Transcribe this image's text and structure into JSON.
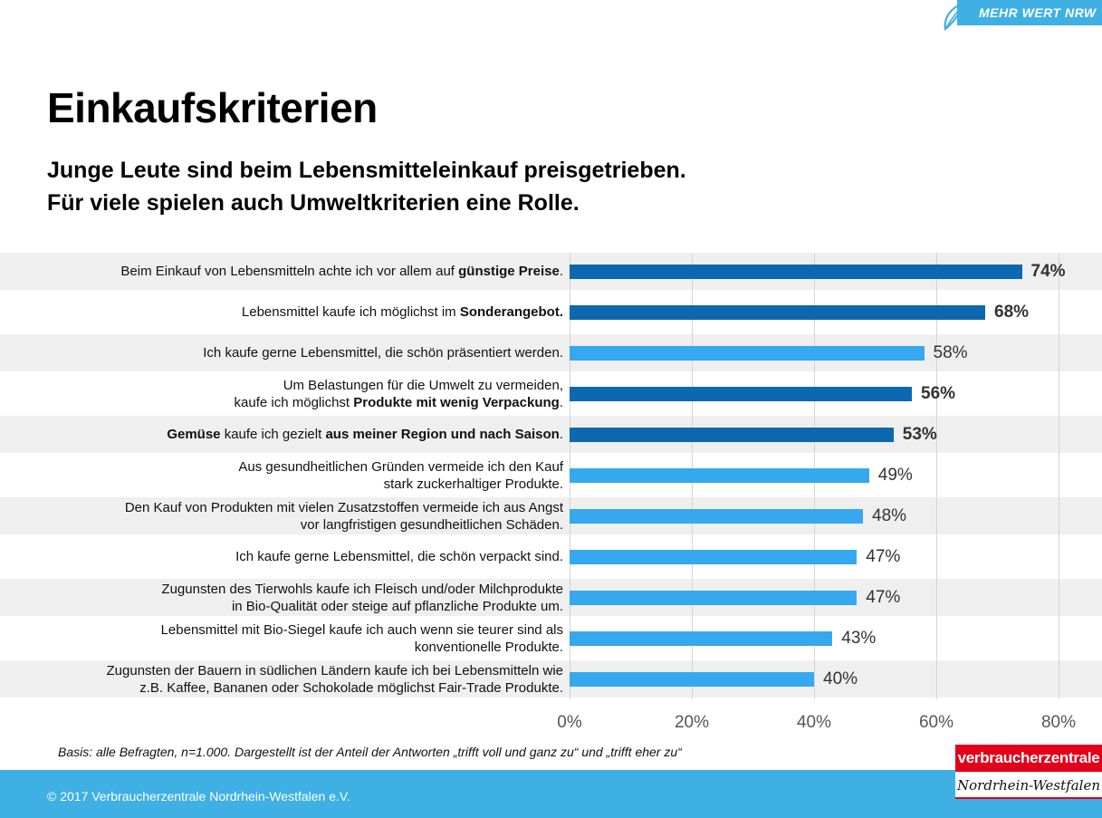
{
  "brand_badge": "MEHR WERT NRW",
  "title": "Einkaufskriterien",
  "subtitle": [
    "Junge Leute sind beim Lebensmitteleinkauf preisgetrieben.",
    "Für viele spielen auch Umweltkriterien eine Rolle."
  ],
  "chart_data": {
    "type": "bar",
    "orientation": "horizontal",
    "xlim": [
      0,
      80
    ],
    "x_ticks": [
      "0%",
      "20%",
      "40%",
      "60%",
      "80%"
    ],
    "grid": true,
    "colors": {
      "highlight": "#0c68b0",
      "normal": "#36a8ef"
    },
    "rows": [
      {
        "label": [
          [
            [
              "Beim Einkauf von Lebensmitteln achte ich vor allem auf ",
              false
            ],
            [
              "günstige Preise",
              true
            ],
            [
              ".",
              false
            ]
          ]
        ],
        "value": 74,
        "value_label": "74%",
        "highlight": true
      },
      {
        "label": [
          [
            [
              "Lebensmittel kaufe ich möglichst im ",
              false
            ],
            [
              "Sonderangebot.",
              true
            ]
          ]
        ],
        "value": 68,
        "value_label": "68%",
        "highlight": true
      },
      {
        "label": [
          [
            [
              "Ich kaufe gerne Lebensmittel, die schön präsentiert werden.",
              false
            ]
          ]
        ],
        "value": 58,
        "value_label": "58%",
        "highlight": false
      },
      {
        "label": [
          [
            [
              "Um Belastungen für die Umwelt zu vermeiden,",
              false
            ]
          ],
          [
            [
              "kaufe ich möglichst ",
              false
            ],
            [
              "Produkte mit wenig Verpackung",
              true
            ],
            [
              ".",
              false
            ]
          ]
        ],
        "value": 56,
        "value_label": "56%",
        "highlight": true
      },
      {
        "label": [
          [
            [
              "Gemüse",
              true
            ],
            [
              " kaufe ich gezielt ",
              false
            ],
            [
              "aus meiner Region und nach Saison",
              true
            ],
            [
              ".",
              false
            ]
          ]
        ],
        "value": 53,
        "value_label": "53%",
        "highlight": true
      },
      {
        "label": [
          [
            [
              "Aus gesundheitlichen Gründen vermeide ich den Kauf",
              false
            ]
          ],
          [
            [
              "stark zuckerhaltiger Produkte.",
              false
            ]
          ]
        ],
        "value": 49,
        "value_label": "49%",
        "highlight": false
      },
      {
        "label": [
          [
            [
              "Den Kauf von Produkten mit vielen Zusatzstoffen vermeide ich aus Angst",
              false
            ]
          ],
          [
            [
              "vor langfristigen gesundheitlichen Schäden.",
              false
            ]
          ]
        ],
        "value": 48,
        "value_label": "48%",
        "highlight": false
      },
      {
        "label": [
          [
            [
              "Ich kaufe gerne Lebensmittel, die schön verpackt sind.",
              false
            ]
          ]
        ],
        "value": 47,
        "value_label": "47%",
        "highlight": false
      },
      {
        "label": [
          [
            [
              "Zugunsten des Tierwohls kaufe ich Fleisch und/oder Milchprodukte",
              false
            ]
          ],
          [
            [
              "in Bio-Qualität oder steige auf pflanzliche Produkte um.",
              false
            ]
          ]
        ],
        "value": 47,
        "value_label": "47%",
        "highlight": false
      },
      {
        "label": [
          [
            [
              "Lebensmittel mit Bio-Siegel kaufe ich auch wenn sie teurer sind als",
              false
            ]
          ],
          [
            [
              "konventionelle Produkte.",
              false
            ]
          ]
        ],
        "value": 43,
        "value_label": "43%",
        "highlight": false
      },
      {
        "label": [
          [
            [
              "Zugunsten der Bauern in südlichen Ländern kaufe ich bei Lebensmitteln wie",
              false
            ]
          ],
          [
            [
              "z.B. Kaffee, Bananen oder Schokolade möglichst Fair-Trade Produkte.",
              false
            ]
          ]
        ],
        "value": 40,
        "value_label": "40%",
        "highlight": false
      }
    ]
  },
  "footnote": "Basis: alle Befragten, n=1.000. Dargestellt ist der Anteil der Antworten „trifft voll und ganz zu“ und „trifft eher zu“",
  "copyright": "© 2017 Verbraucherzentrale Nordrhein-Westfalen e.V.",
  "logo": {
    "top": "verbraucherzentrale",
    "bottom": "Nordrhein-Westfalen"
  }
}
